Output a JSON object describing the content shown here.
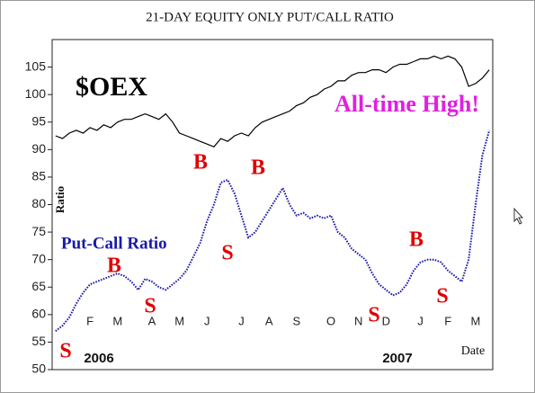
{
  "chart_data": {
    "type": "line",
    "title": "21-DAY EQUITY ONLY PUT/CALL RATIO",
    "y_label": "Ratio",
    "x_label": "Date",
    "year_labels": [
      "2006",
      "2007"
    ],
    "categories": [
      null,
      null,
      null,
      null,
      null,
      "F",
      null,
      null,
      null,
      "M",
      null,
      null,
      null,
      null,
      "A",
      null,
      null,
      null,
      "M",
      null,
      null,
      null,
      "J",
      null,
      null,
      null,
      null,
      "J",
      null,
      null,
      null,
      "A",
      null,
      null,
      null,
      "S",
      null,
      null,
      null,
      null,
      "O",
      null,
      null,
      null,
      "N",
      null,
      null,
      null,
      "D",
      null,
      null,
      null,
      null,
      "J",
      null,
      null,
      null,
      "F",
      null,
      null,
      null,
      "M",
      null,
      null
    ],
    "series": [
      {
        "name": "$OEX",
        "color": "#000000",
        "values": [
          92.5,
          92,
          93,
          93.5,
          93,
          94,
          93.5,
          94.5,
          94,
          95,
          95.5,
          95.5,
          96,
          96.5,
          96,
          95.5,
          96.5,
          95,
          93,
          92.5,
          92,
          91.5,
          91,
          90.5,
          92,
          91.5,
          92.5,
          93,
          92.5,
          94,
          95,
          95.5,
          96,
          96.5,
          97,
          98,
          98.5,
          99.5,
          100,
          101,
          101.5,
          102.5,
          102.5,
          103.5,
          104,
          104,
          104.5,
          104.5,
          104,
          105,
          105.5,
          105.5,
          106,
          106.5,
          106.5,
          107,
          106.5,
          107,
          106.5,
          105,
          101.5,
          102,
          103,
          104.5
        ]
      },
      {
        "name": "Put-Call Ratio",
        "color": "#1a1aa8",
        "values": [
          57,
          58,
          59.5,
          62,
          64,
          65.5,
          66,
          66.5,
          67,
          67.5,
          67,
          66,
          64.5,
          66.5,
          66,
          65,
          64.5,
          65.5,
          66.5,
          68,
          70.5,
          73,
          77,
          80,
          84,
          84.5,
          82,
          78,
          74,
          75,
          77,
          79,
          81,
          83,
          80,
          78,
          78.5,
          77.5,
          78,
          77.5,
          78,
          75,
          74,
          72,
          71,
          70,
          67.5,
          65.5,
          64.5,
          63.5,
          64,
          65.5,
          68,
          69.5,
          70,
          70,
          69.5,
          68,
          67,
          66,
          70,
          80,
          89,
          93.5
        ]
      }
    ],
    "annotations": [
      {
        "text": "$OEX",
        "color": "#000000"
      },
      {
        "text": "All-time High!",
        "color": "#e020e0"
      },
      {
        "text": "B",
        "color": "#e00000"
      },
      {
        "text": "B",
        "color": "#e00000"
      },
      {
        "text": "B",
        "color": "#e00000"
      },
      {
        "text": "B",
        "color": "#e00000"
      },
      {
        "text": "S",
        "color": "#e00000"
      },
      {
        "text": "S",
        "color": "#e00000"
      },
      {
        "text": "S",
        "color": "#e00000"
      },
      {
        "text": "S",
        "color": "#e00000"
      },
      {
        "text": "S",
        "color": "#e00000"
      }
    ],
    "ylim": [
      50,
      110
    ],
    "yticks": [
      50,
      55,
      60,
      65,
      70,
      75,
      80,
      85,
      90,
      95,
      100,
      105
    ]
  }
}
